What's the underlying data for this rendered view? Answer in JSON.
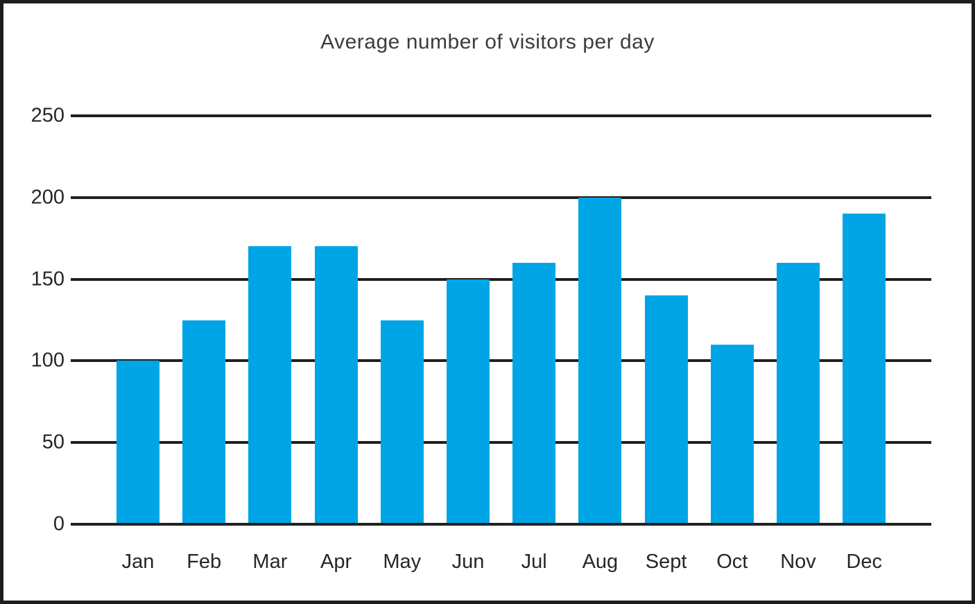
{
  "chart_data": {
    "type": "bar",
    "title": "Average number of visitors per day",
    "categories": [
      "Jan",
      "Feb",
      "Mar",
      "Apr",
      "May",
      "Jun",
      "Jul",
      "Aug",
      "Sept",
      "Oct",
      "Nov",
      "Dec"
    ],
    "values": [
      100,
      125,
      170,
      170,
      125,
      150,
      160,
      200,
      140,
      110,
      160,
      190
    ],
    "xlabel": "",
    "ylabel": "",
    "y_ticks": [
      0,
      50,
      100,
      150,
      200,
      250
    ],
    "ylim": [
      0,
      250
    ],
    "grid": true,
    "legend": false,
    "colors": {
      "bar": "#00A5E5",
      "grid_line": "#221F1F",
      "frame_border": "#1F1C1C",
      "title_text": "#3C3C3B",
      "tick_text": "#262626",
      "background": "#FFFFFF"
    }
  }
}
